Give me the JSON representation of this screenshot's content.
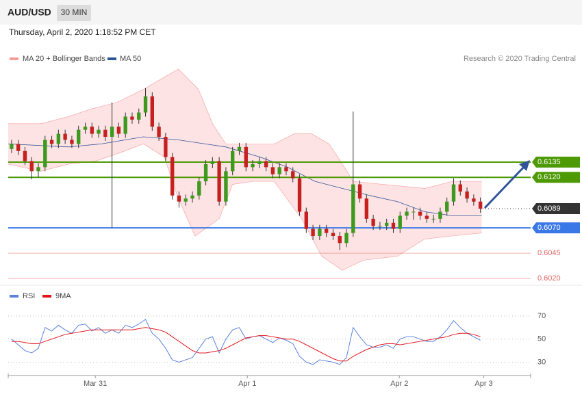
{
  "header": {
    "symbol": "AUD/USD",
    "interval": "30 MIN",
    "datetime": "Thursday, April 2, 2020 1:18:52 PM CET"
  },
  "chart_data": [
    {
      "type": "candlestick",
      "credit": "Research © 2020 Trading Central",
      "up_color": "#3d9a1e",
      "down_color": "#c62020",
      "xlim": [
        -0.5,
        77.5
      ],
      "ylim": [
        0.6014,
        0.6231
      ],
      "open": [
        0.6148,
        0.6153,
        0.6146,
        0.6136,
        0.6126,
        0.613,
        0.6157,
        0.6153,
        0.6163,
        0.6157,
        0.6153,
        0.6167,
        0.617,
        0.6163,
        0.6167,
        0.616,
        0.617,
        0.6163,
        0.618,
        0.6177,
        0.6184,
        0.62,
        0.617,
        0.616,
        0.614,
        0.6102,
        0.6096,
        0.6099,
        0.6102,
        0.6116,
        0.6133,
        0.6136,
        0.6096,
        0.6126,
        0.6146,
        0.615,
        0.613,
        0.6133,
        0.6136,
        0.613,
        0.6123,
        0.613,
        0.6126,
        0.6119,
        0.6086,
        0.6069,
        0.6062,
        0.6069,
        0.6065,
        0.6062,
        0.6055,
        0.6065,
        0.6113,
        0.6099,
        0.6079,
        0.6072,
        0.6072,
        0.6075,
        0.6069,
        0.6082,
        0.6086,
        0.6086,
        0.6082,
        0.6079,
        0.6079,
        0.6086,
        0.6096,
        0.6113,
        0.6106,
        0.6099,
        0.6096
      ],
      "high": [
        0.6157,
        0.6157,
        0.615,
        0.614,
        0.6134,
        0.6161,
        0.6161,
        0.6167,
        0.6167,
        0.6161,
        0.6171,
        0.6174,
        0.6174,
        0.6171,
        0.6171,
        0.6194,
        0.6174,
        0.6184,
        0.6184,
        0.6188,
        0.6208,
        0.6204,
        0.6174,
        0.6164,
        0.6144,
        0.6106,
        0.6103,
        0.6106,
        0.612,
        0.6137,
        0.614,
        0.614,
        0.613,
        0.615,
        0.6154,
        0.6154,
        0.6137,
        0.614,
        0.614,
        0.6134,
        0.6134,
        0.6134,
        0.613,
        0.6123,
        0.609,
        0.6073,
        0.6073,
        0.6073,
        0.6069,
        0.6066,
        0.6069,
        0.6185,
        0.6117,
        0.6103,
        0.6083,
        0.6076,
        0.6079,
        0.6079,
        0.6086,
        0.609,
        0.609,
        0.609,
        0.6086,
        0.6083,
        0.609,
        0.61,
        0.6119,
        0.6117,
        0.611,
        0.6103,
        0.61
      ],
      "low": [
        0.6144,
        0.6142,
        0.6132,
        0.6118,
        0.612,
        0.6126,
        0.6149,
        0.6149,
        0.6153,
        0.6149,
        0.6149,
        0.6163,
        0.6159,
        0.6159,
        0.6156,
        0.607,
        0.6159,
        0.6159,
        0.6173,
        0.6173,
        0.618,
        0.6166,
        0.6156,
        0.6136,
        0.6098,
        0.609,
        0.6092,
        0.6095,
        0.6098,
        0.6112,
        0.6129,
        0.6092,
        0.6092,
        0.6122,
        0.6142,
        0.6126,
        0.6126,
        0.6129,
        0.6126,
        0.6119,
        0.6119,
        0.6122,
        0.6115,
        0.6082,
        0.6065,
        0.6058,
        0.6058,
        0.6061,
        0.6058,
        0.6048,
        0.6051,
        0.6061,
        0.6095,
        0.6075,
        0.6068,
        0.6068,
        0.6068,
        0.6065,
        0.6065,
        0.6078,
        0.6078,
        0.6078,
        0.6075,
        0.6075,
        0.6075,
        0.6082,
        0.6092,
        0.6102,
        0.6095,
        0.6092,
        0.6085
      ],
      "close": [
        0.6153,
        0.6146,
        0.6136,
        0.6126,
        0.613,
        0.6157,
        0.6153,
        0.6163,
        0.6157,
        0.6153,
        0.6167,
        0.617,
        0.6163,
        0.6167,
        0.616,
        0.617,
        0.6163,
        0.618,
        0.6177,
        0.6184,
        0.62,
        0.617,
        0.616,
        0.614,
        0.6102,
        0.6096,
        0.6099,
        0.6102,
        0.6116,
        0.6133,
        0.6136,
        0.6096,
        0.6126,
        0.6146,
        0.615,
        0.613,
        0.6133,
        0.6136,
        0.613,
        0.6123,
        0.613,
        0.6126,
        0.6119,
        0.6086,
        0.6069,
        0.6062,
        0.6069,
        0.6065,
        0.6062,
        0.6055,
        0.6065,
        0.6113,
        0.6099,
        0.6079,
        0.6072,
        0.6072,
        0.6075,
        0.6069,
        0.6082,
        0.6086,
        0.6086,
        0.6082,
        0.6079,
        0.6079,
        0.6086,
        0.6096,
        0.6113,
        0.6106,
        0.6099,
        0.6096,
        0.6089
      ],
      "bands": {
        "name": "MA 20 + Bollinger Bands",
        "color": "#f79a9a",
        "fill": "#fcdcdc",
        "upper": {
          "x": [
            -0.5,
            4.4,
            8.5,
            11.6,
            15.7,
            19.7,
            24.9,
            27.9,
            30.0,
            32.0,
            35.1,
            39.2,
            42.2,
            44.8,
            47.4,
            49.4,
            51.0,
            55.5,
            61.7,
            65.8,
            70.2
          ],
          "values": [
            0.6173,
            0.6173,
            0.618,
            0.6187,
            0.6194,
            0.6207,
            0.6227,
            0.6207,
            0.6173,
            0.6153,
            0.6153,
            0.6153,
            0.6163,
            0.6163,
            0.6153,
            0.6133,
            0.6116,
            0.6113,
            0.6109,
            0.6116,
            0.6116
          ]
        },
        "lower": {
          "x": [
            -0.5,
            4.4,
            8.5,
            12.5,
            15.7,
            19.7,
            22.8,
            24.9,
            27.4,
            31.0,
            33.0,
            36.1,
            39.2,
            43.3,
            46.3,
            49.4,
            52.5,
            57.6,
            61.7,
            65.8,
            70.2
          ],
          "values": [
            0.6133,
            0.6126,
            0.6133,
            0.6136,
            0.6143,
            0.6153,
            0.614,
            0.6099,
            0.6062,
            0.6079,
            0.6113,
            0.6116,
            0.6116,
            0.6079,
            0.6042,
            0.6028,
            0.6038,
            0.6042,
            0.6059,
            0.6062,
            0.6065
          ]
        }
      },
      "ma": {
        "name": "MA 50",
        "color": "#2f5597",
        "x": [
          -0.5,
          8.5,
          13.4,
          19.7,
          24.9,
          28.9,
          32.0,
          37.1,
          41.2,
          45.3,
          49.4,
          53.5,
          57.6,
          61.7,
          65.8,
          70.2
        ],
        "values": [
          0.6153,
          0.615,
          0.6153,
          0.616,
          0.6157,
          0.6153,
          0.615,
          0.614,
          0.613,
          0.6116,
          0.6109,
          0.6102,
          0.6096,
          0.6086,
          0.6082,
          0.6082
        ]
      },
      "levels": [
        {
          "value": 0.6135,
          "label": "0.6135",
          "color": "#4e9a06",
          "boxed": true
        },
        {
          "value": 0.612,
          "label": "0.6120",
          "color": "#4e9a06",
          "boxed": true
        },
        {
          "value": 0.6089,
          "label": "0.6089",
          "color": "#333333",
          "boxed": true,
          "dotted": true
        },
        {
          "value": 0.607,
          "label": "0.6070",
          "color": "#3b78e7",
          "boxed": true
        },
        {
          "value": 0.6045,
          "label": "0.6045",
          "color": "#e06666",
          "boxed": false
        },
        {
          "value": 0.602,
          "label": "0.6020",
          "color": "#e06666",
          "boxed": false
        }
      ]
    },
    {
      "type": "line",
      "xlim": [
        -0.5,
        77.5
      ],
      "ylim": [
        19,
        83
      ],
      "yticks": [
        30,
        50,
        70
      ],
      "xticks": [
        {
          "value": 12.5,
          "label": "Mar 31"
        },
        {
          "value": 35.2,
          "label": "Apr 1"
        },
        {
          "value": 57.9,
          "label": "Apr 2"
        },
        {
          "value": 70.5,
          "label": "Apr 3"
        }
      ],
      "series": [
        {
          "name": "RSI",
          "color": "#5b82dc",
          "values": [
            50,
            45,
            40,
            38,
            42,
            60,
            57,
            62,
            58,
            55,
            62,
            63,
            57,
            60,
            55,
            58,
            55,
            62,
            60,
            63,
            67,
            55,
            50,
            42,
            32,
            30,
            32,
            34,
            42,
            50,
            52,
            38,
            50,
            58,
            60,
            50,
            52,
            53,
            50,
            47,
            51,
            49,
            46,
            35,
            30,
            28,
            32,
            31,
            30,
            28,
            34,
            60,
            52,
            45,
            43,
            43,
            45,
            42,
            50,
            52,
            52,
            50,
            48,
            48,
            52,
            58,
            66,
            60,
            55,
            52,
            49
          ]
        },
        {
          "name": "9MA",
          "color": "#e3151b",
          "values": [
            48,
            48,
            47,
            46,
            46,
            48,
            50,
            52,
            54,
            55,
            56,
            57,
            58,
            58,
            58,
            58,
            58,
            58,
            58,
            59,
            60,
            59,
            58,
            56,
            52,
            48,
            44,
            40,
            38,
            38,
            39,
            40,
            42,
            45,
            48,
            51,
            52,
            53,
            53,
            52,
            51,
            50,
            50,
            48,
            45,
            42,
            39,
            36,
            33,
            31,
            31,
            35,
            38,
            41,
            43,
            45,
            46,
            46,
            45,
            46,
            47,
            48,
            49,
            50,
            51,
            52,
            54,
            55,
            55,
            54,
            52
          ]
        }
      ]
    }
  ]
}
